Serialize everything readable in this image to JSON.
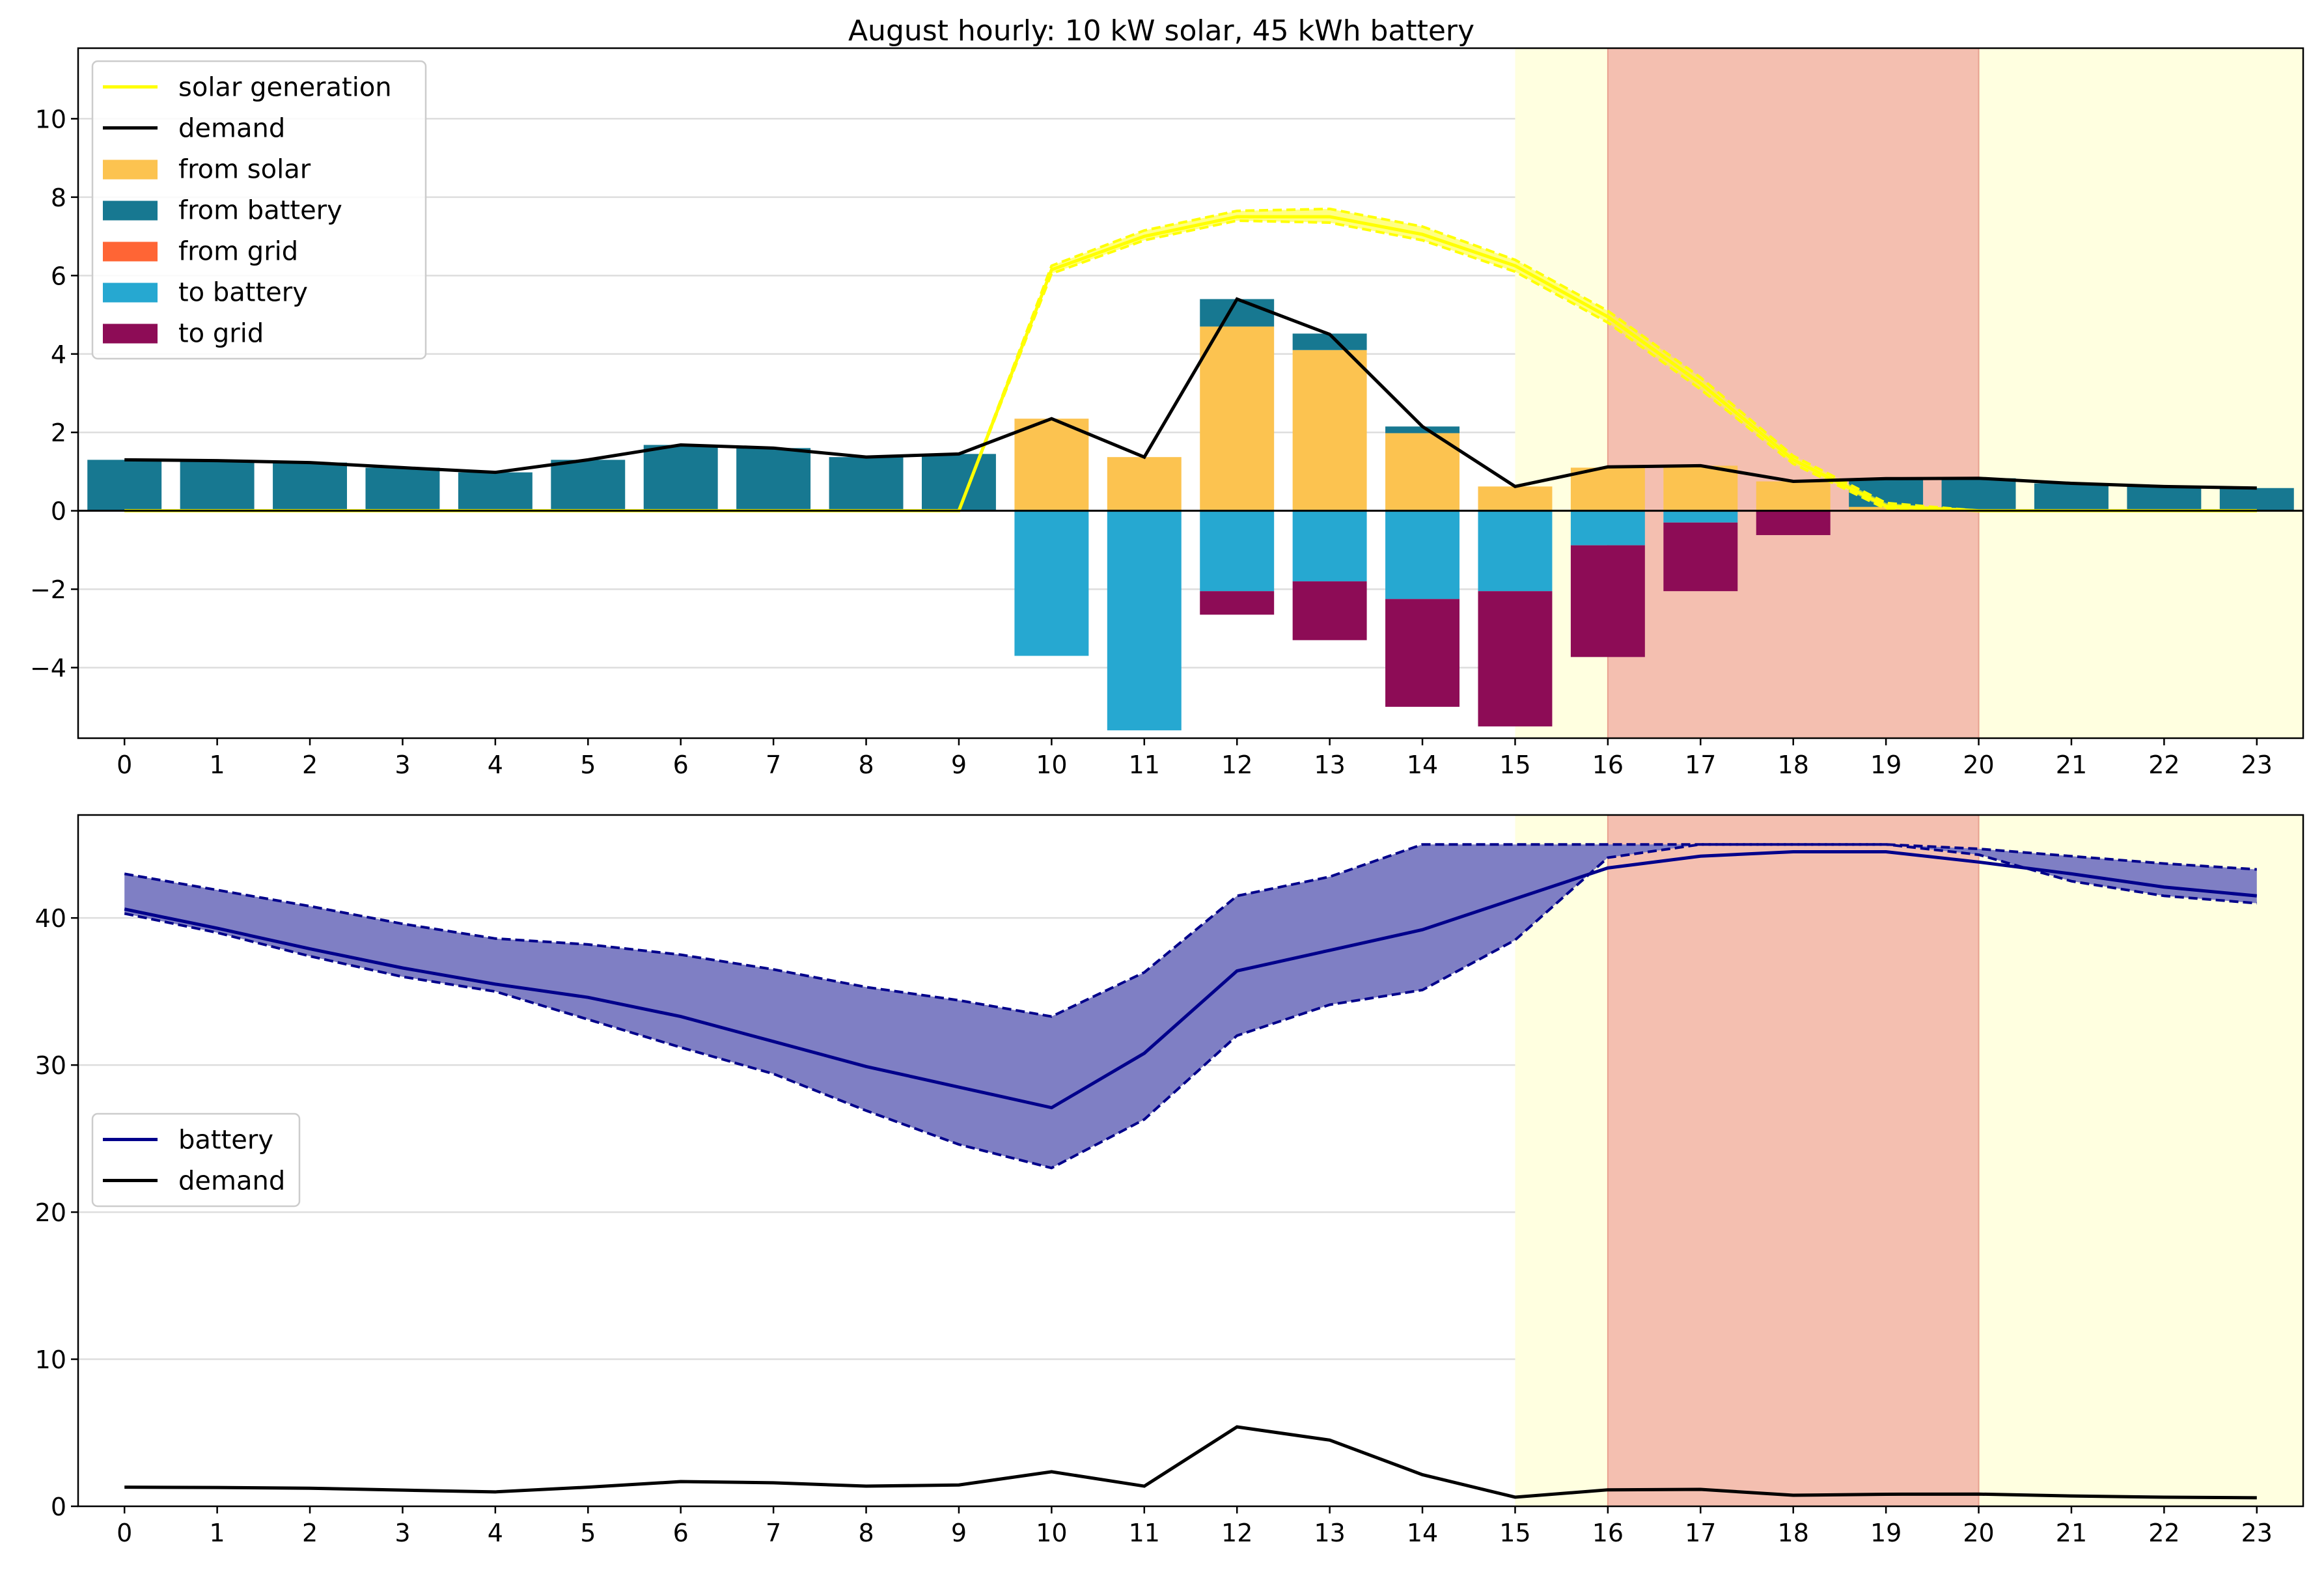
{
  "title": "August hourly: 10 kW solar, 45 kWh battery",
  "colors": {
    "solar_line": "#ffff00",
    "solar_band": "#ffff33",
    "demand": "#000000",
    "from_solar": "#fcc350",
    "from_battery": "#177891",
    "from_grid": "#ff6535",
    "to_battery": "#26a8d1",
    "to_grid": "#8d0c56",
    "battery": "#00008b",
    "battery_band": "#7f7fc4",
    "offpeak_shade": "#ffffe0",
    "peak_shade": "#f4bfb0",
    "grid": "#dddddd"
  },
  "chart_data": [
    {
      "type": "bar",
      "x": [
        0,
        1,
        2,
        3,
        4,
        5,
        6,
        7,
        8,
        9,
        10,
        11,
        12,
        13,
        14,
        15,
        16,
        17,
        18,
        19,
        20,
        21,
        22,
        23
      ],
      "ylim": [
        -5.8,
        11.8
      ],
      "yticks": [
        -4,
        -2,
        0,
        2,
        4,
        6,
        8,
        10
      ],
      "grid": true,
      "legend": "top-left",
      "shaded_regions": [
        {
          "from": 15,
          "to": 23.5,
          "kind": "shoulder"
        },
        {
          "from": 16,
          "to": 20,
          "kind": "peak"
        }
      ],
      "series": [
        {
          "name": "solar generation",
          "kind": "line",
          "color_key": "solar_line",
          "values": [
            0,
            0,
            0,
            0,
            0,
            0,
            0,
            0,
            0,
            0,
            6.15,
            7.0,
            7.5,
            7.5,
            7.05,
            6.25,
            4.95,
            3.25,
            1.3,
            0.12,
            0,
            0,
            0,
            0
          ],
          "band_upper": [
            0,
            0,
            0,
            0,
            0,
            0,
            0,
            0,
            0,
            0,
            6.25,
            7.15,
            7.65,
            7.7,
            7.25,
            6.4,
            5.1,
            3.4,
            1.4,
            0.2,
            0,
            0,
            0,
            0
          ],
          "band_lower": [
            0,
            0,
            0,
            0,
            0,
            0,
            0,
            0,
            0,
            0,
            6.05,
            6.9,
            7.4,
            7.35,
            6.9,
            6.1,
            4.8,
            3.1,
            1.2,
            0.05,
            0,
            0,
            0,
            0
          ]
        },
        {
          "name": "demand",
          "kind": "line",
          "color_key": "demand",
          "values": [
            1.3,
            1.28,
            1.23,
            1.1,
            0.98,
            1.3,
            1.68,
            1.6,
            1.37,
            1.45,
            2.35,
            1.37,
            5.4,
            4.5,
            2.15,
            0.62,
            1.12,
            1.15,
            0.75,
            0.82,
            0.83,
            0.7,
            0.62,
            0.58
          ]
        },
        {
          "name": "from solar",
          "kind": "bar",
          "color_key": "from_solar",
          "values": [
            0,
            0,
            0,
            0,
            0,
            0,
            0,
            0,
            0,
            0,
            2.35,
            1.37,
            4.7,
            4.1,
            1.98,
            0.62,
            1.1,
            1.15,
            0.75,
            0.1,
            0,
            0,
            0,
            0
          ]
        },
        {
          "name": "from battery",
          "kind": "bar",
          "color_key": "from_battery",
          "values": [
            1.3,
            1.28,
            1.23,
            1.1,
            0.98,
            1.3,
            1.68,
            1.6,
            1.37,
            1.45,
            0,
            0,
            0.7,
            0.42,
            0.17,
            0,
            0,
            0,
            0,
            0.72,
            0.83,
            0.7,
            0.62,
            0.58
          ]
        },
        {
          "name": "from grid",
          "kind": "bar",
          "color_key": "from_grid",
          "values": [
            0,
            0,
            0,
            0,
            0,
            0,
            0,
            0,
            0,
            0,
            0,
            0,
            0,
            0,
            0,
            0,
            0,
            0,
            0,
            0,
            0,
            0,
            0,
            0
          ]
        },
        {
          "name": "to battery",
          "kind": "bar",
          "color_key": "to_battery",
          "values": [
            0,
            0,
            0,
            0,
            0,
            0,
            0,
            0,
            0,
            0,
            -3.7,
            -5.6,
            -2.05,
            -1.8,
            -2.25,
            -2.05,
            -0.88,
            -0.3,
            0,
            0,
            0,
            0,
            0,
            0
          ]
        },
        {
          "name": "to grid",
          "kind": "bar",
          "color_key": "to_grid",
          "values": [
            0,
            0,
            0,
            0,
            0,
            0,
            0,
            0,
            0,
            0,
            0,
            0,
            -0.6,
            -1.5,
            -2.75,
            -3.45,
            -2.85,
            -1.75,
            -0.62,
            0,
            0,
            0,
            0,
            0
          ]
        }
      ]
    },
    {
      "type": "area",
      "x": [
        0,
        1,
        2,
        3,
        4,
        5,
        6,
        7,
        8,
        9,
        10,
        11,
        12,
        13,
        14,
        15,
        16,
        17,
        18,
        19,
        20,
        21,
        22,
        23
      ],
      "ylim": [
        0,
        47
      ],
      "yticks": [
        0,
        10,
        20,
        30,
        40
      ],
      "grid": true,
      "legend": "center-left",
      "shaded_regions": [
        {
          "from": 15,
          "to": 23.5,
          "kind": "shoulder"
        },
        {
          "from": 16,
          "to": 20,
          "kind": "peak"
        }
      ],
      "series": [
        {
          "name": "battery",
          "kind": "line",
          "color_key": "battery",
          "values": [
            40.6,
            39.3,
            37.9,
            36.6,
            35.5,
            34.6,
            33.3,
            31.6,
            29.9,
            28.5,
            27.1,
            30.8,
            36.4,
            37.8,
            39.2,
            41.3,
            43.4,
            44.2,
            44.5,
            44.5,
            43.8,
            43.0,
            42.1,
            41.5
          ],
          "band_upper": [
            43.0,
            41.9,
            40.8,
            39.6,
            38.6,
            38.2,
            37.5,
            36.5,
            35.3,
            34.4,
            33.3,
            36.3,
            41.5,
            42.8,
            45.0,
            45.0,
            45.0,
            45.0,
            45.0,
            45.0,
            44.7,
            44.2,
            43.7,
            43.3
          ],
          "band_lower": [
            40.3,
            39.0,
            37.4,
            36.0,
            35.0,
            33.1,
            31.2,
            29.4,
            26.9,
            24.6,
            23.0,
            26.3,
            32.0,
            34.1,
            35.1,
            38.5,
            44.1,
            45.0,
            45.0,
            45.0,
            44.3,
            42.5,
            41.5,
            41.0
          ]
        },
        {
          "name": "demand",
          "kind": "line",
          "color_key": "demand",
          "values": [
            1.3,
            1.28,
            1.23,
            1.1,
            0.98,
            1.3,
            1.68,
            1.6,
            1.37,
            1.45,
            2.35,
            1.37,
            5.4,
            4.5,
            2.15,
            0.62,
            1.12,
            1.15,
            0.75,
            0.82,
            0.83,
            0.7,
            0.62,
            0.58
          ]
        }
      ]
    }
  ]
}
